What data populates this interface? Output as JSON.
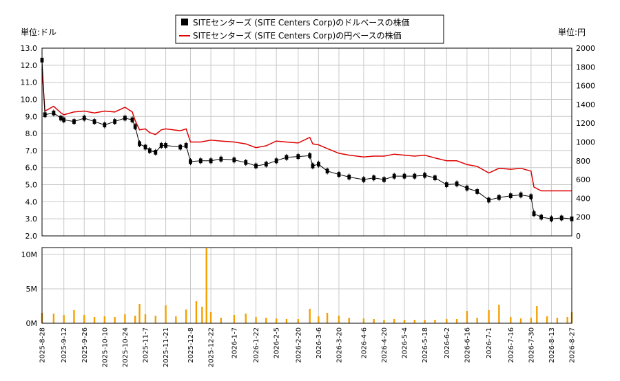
{
  "legend": {
    "usd_label": "SITEセンターズ (SITE Centers Corp)のドルベースの株価",
    "jpy_label": "SITEセンターズ (SITE Centers Corp)の円ベースの株価"
  },
  "axes": {
    "left_unit": "単位:ドル",
    "right_unit": "単位:円"
  },
  "chart_data": [
    {
      "type": "line",
      "title": "",
      "legend_position": "top-center",
      "grid": true,
      "x_dates": [
        "2025-8-28",
        "2025-9-12",
        "2025-9-26",
        "2025-10-10",
        "2025-10-24",
        "2025-11-7",
        "2025-11-21",
        "2025-12-8",
        "2025-12-22",
        "2026-1-7",
        "2026-1-22",
        "2026-2-5",
        "2026-2-20",
        "2026-3-6",
        "2026-3-20",
        "2026-4-6",
        "2026-4-20",
        "2026-5-4",
        "2026-5-18",
        "2026-6-2",
        "2026-6-16",
        "2026-7-1",
        "2026-7-16",
        "2026-7-30",
        "2026-8-13",
        "2026-8-27"
      ],
      "y_left": {
        "label": "単位:ドル",
        "ylim": [
          2.0,
          13.0
        ],
        "ticks": [
          "2.0",
          "3.0",
          "4.0",
          "5.0",
          "6.0",
          "7.0",
          "8.0",
          "9.0",
          "10.0",
          "11.0",
          "12.0",
          "13.0"
        ]
      },
      "y_right": {
        "label": "単位:円",
        "ylim": [
          0,
          2000
        ],
        "ticks": [
          "0",
          "200",
          "400",
          "600",
          "800",
          "1000",
          "1200",
          "1400",
          "1600",
          "1800",
          "2000"
        ]
      },
      "series": [
        {
          "name": "SITEセンターズ (SITE Centers Corp)のドルベースの株価",
          "axis": "left",
          "color": "#000000",
          "style": "candlestick",
          "points": [
            [
              "2025-8-28",
              12.3
            ],
            [
              "2025-8-30",
              9.1
            ],
            [
              "2025-9-5",
              9.2
            ],
            [
              "2025-9-10",
              8.9
            ],
            [
              "2025-9-12",
              8.8
            ],
            [
              "2025-9-19",
              8.7
            ],
            [
              "2025-9-26",
              8.9
            ],
            [
              "2025-10-3",
              8.7
            ],
            [
              "2025-10-10",
              8.5
            ],
            [
              "2025-10-17",
              8.7
            ],
            [
              "2025-10-24",
              8.9
            ],
            [
              "2025-10-29",
              8.8
            ],
            [
              "2025-10-31",
              8.4
            ],
            [
              "2025-11-3",
              7.4
            ],
            [
              "2025-11-7",
              7.2
            ],
            [
              "2025-11-10",
              7.0
            ],
            [
              "2025-11-14",
              6.9
            ],
            [
              "2025-11-18",
              7.3
            ],
            [
              "2025-11-21",
              7.3
            ],
            [
              "2025-12-1",
              7.2
            ],
            [
              "2025-12-5",
              7.3
            ],
            [
              "2025-12-8",
              6.35
            ],
            [
              "2025-12-15",
              6.4
            ],
            [
              "2025-12-22",
              6.4
            ],
            [
              "2025-12-29",
              6.5
            ],
            [
              "2026-1-7",
              6.45
            ],
            [
              "2026-1-15",
              6.3
            ],
            [
              "2026-1-22",
              6.1
            ],
            [
              "2026-1-29",
              6.2
            ],
            [
              "2026-2-5",
              6.4
            ],
            [
              "2026-2-12",
              6.6
            ],
            [
              "2026-2-20",
              6.65
            ],
            [
              "2026-2-28",
              6.7
            ],
            [
              "2026-3-2",
              6.1
            ],
            [
              "2026-3-6",
              6.2
            ],
            [
              "2026-3-12",
              5.8
            ],
            [
              "2026-3-20",
              5.6
            ],
            [
              "2026-3-27",
              5.45
            ],
            [
              "2026-4-6",
              5.3
            ],
            [
              "2026-4-13",
              5.4
            ],
            [
              "2026-4-20",
              5.3
            ],
            [
              "2026-4-27",
              5.5
            ],
            [
              "2026-5-4",
              5.5
            ],
            [
              "2026-5-11",
              5.5
            ],
            [
              "2026-5-18",
              5.55
            ],
            [
              "2026-5-25",
              5.4
            ],
            [
              "2026-6-2",
              5.0
            ],
            [
              "2026-6-9",
              5.05
            ],
            [
              "2026-6-16",
              4.8
            ],
            [
              "2026-6-23",
              4.6
            ],
            [
              "2026-7-1",
              4.1
            ],
            [
              "2026-7-8",
              4.25
            ],
            [
              "2026-7-16",
              4.35
            ],
            [
              "2026-7-23",
              4.4
            ],
            [
              "2026-7-30",
              4.3
            ],
            [
              "2026-8-1",
              3.3
            ],
            [
              "2026-8-6",
              3.1
            ],
            [
              "2026-8-13",
              3.0
            ],
            [
              "2026-8-20",
              3.05
            ],
            [
              "2026-8-27",
              3.0
            ]
          ]
        },
        {
          "name": "SITEセンターズ (SITE Centers Corp)の円ベースの株価",
          "axis": "right",
          "color": "#dd0000",
          "style": "line",
          "points": [
            [
              "2025-8-28",
              1780
            ],
            [
              "2025-8-30",
              1330
            ],
            [
              "2025-9-5",
              1380
            ],
            [
              "2025-9-10",
              1310
            ],
            [
              "2025-9-12",
              1290
            ],
            [
              "2025-9-19",
              1320
            ],
            [
              "2025-9-26",
              1330
            ],
            [
              "2025-10-3",
              1310
            ],
            [
              "2025-10-10",
              1330
            ],
            [
              "2025-10-17",
              1320
            ],
            [
              "2025-10-24",
              1370
            ],
            [
              "2025-10-29",
              1320
            ],
            [
              "2025-10-31",
              1230
            ],
            [
              "2025-11-3",
              1130
            ],
            [
              "2025-11-7",
              1140
            ],
            [
              "2025-11-10",
              1100
            ],
            [
              "2025-11-14",
              1080
            ],
            [
              "2025-11-18",
              1130
            ],
            [
              "2025-11-21",
              1140
            ],
            [
              "2025-12-1",
              1120
            ],
            [
              "2025-12-5",
              1140
            ],
            [
              "2025-12-8",
              1000
            ],
            [
              "2025-12-15",
              1000
            ],
            [
              "2025-12-22",
              1020
            ],
            [
              "2025-12-29",
              1010
            ],
            [
              "2026-1-7",
              1000
            ],
            [
              "2026-1-15",
              980
            ],
            [
              "2026-1-22",
              940
            ],
            [
              "2026-1-29",
              960
            ],
            [
              "2026-2-5",
              1010
            ],
            [
              "2026-2-12",
              1000
            ],
            [
              "2026-2-20",
              990
            ],
            [
              "2026-2-28",
              1050
            ],
            [
              "2026-3-2",
              980
            ],
            [
              "2026-3-6",
              970
            ],
            [
              "2026-3-12",
              930
            ],
            [
              "2026-3-20",
              880
            ],
            [
              "2026-3-27",
              860
            ],
            [
              "2026-4-6",
              840
            ],
            [
              "2026-4-13",
              850
            ],
            [
              "2026-4-20",
              850
            ],
            [
              "2026-4-27",
              870
            ],
            [
              "2026-5-4",
              860
            ],
            [
              "2026-5-11",
              850
            ],
            [
              "2026-5-18",
              860
            ],
            [
              "2026-5-25",
              830
            ],
            [
              "2026-6-2",
              800
            ],
            [
              "2026-6-9",
              800
            ],
            [
              "2026-6-16",
              760
            ],
            [
              "2026-6-23",
              740
            ],
            [
              "2026-7-1",
              670
            ],
            [
              "2026-7-8",
              720
            ],
            [
              "2026-7-16",
              710
            ],
            [
              "2026-7-23",
              720
            ],
            [
              "2026-7-30",
              690
            ],
            [
              "2026-8-1",
              520
            ],
            [
              "2026-8-6",
              480
            ],
            [
              "2026-8-13",
              480
            ],
            [
              "2026-8-20",
              480
            ],
            [
              "2026-8-27",
              480
            ]
          ]
        }
      ]
    },
    {
      "type": "bar",
      "title": "",
      "grid": true,
      "y": {
        "ylim": [
          0,
          11
        ],
        "unit": "M",
        "ticks": [
          "0M",
          "5M",
          "10M"
        ]
      },
      "series": [
        {
          "name": "",
          "color": "#f5a000",
          "values_by_date": [
            [
              "2025-8-28",
              1.5
            ],
            [
              "2025-9-5",
              1.4
            ],
            [
              "2025-9-12",
              1.2
            ],
            [
              "2025-9-19",
              1.9
            ],
            [
              "2025-9-26",
              1.2
            ],
            [
              "2025-10-3",
              0.9
            ],
            [
              "2025-10-10",
              1.0
            ],
            [
              "2025-10-17",
              0.9
            ],
            [
              "2025-10-24",
              1.3
            ],
            [
              "2025-10-31",
              1.1
            ],
            [
              "2025-11-3",
              2.8
            ],
            [
              "2025-11-7",
              1.3
            ],
            [
              "2025-11-14",
              1.1
            ],
            [
              "2025-11-21",
              2.6
            ],
            [
              "2025-11-28",
              1.0
            ],
            [
              "2025-12-5",
              2.0
            ],
            [
              "2025-12-12",
              3.2
            ],
            [
              "2025-12-16",
              2.4
            ],
            [
              "2025-12-19",
              10.9
            ],
            [
              "2025-12-22",
              1.6
            ],
            [
              "2025-12-29",
              0.8
            ],
            [
              "2026-1-7",
              1.2
            ],
            [
              "2026-1-15",
              1.4
            ],
            [
              "2026-1-22",
              0.9
            ],
            [
              "2026-1-29",
              0.8
            ],
            [
              "2026-2-5",
              0.7
            ],
            [
              "2026-2-12",
              0.6
            ],
            [
              "2026-2-20",
              0.6
            ],
            [
              "2026-2-28",
              2.1
            ],
            [
              "2026-3-6",
              1.0
            ],
            [
              "2026-3-12",
              1.5
            ],
            [
              "2026-3-20",
              1.1
            ],
            [
              "2026-3-27",
              0.8
            ],
            [
              "2026-4-6",
              0.7
            ],
            [
              "2026-4-13",
              0.6
            ],
            [
              "2026-4-20",
              0.5
            ],
            [
              "2026-4-27",
              0.6
            ],
            [
              "2026-5-4",
              0.5
            ],
            [
              "2026-5-11",
              0.5
            ],
            [
              "2026-5-18",
              0.5
            ],
            [
              "2026-5-25",
              0.5
            ],
            [
              "2026-6-2",
              0.6
            ],
            [
              "2026-6-9",
              0.6
            ],
            [
              "2026-6-16",
              1.8
            ],
            [
              "2026-6-23",
              0.8
            ],
            [
              "2026-7-1",
              1.9
            ],
            [
              "2026-7-8",
              2.7
            ],
            [
              "2026-7-16",
              0.9
            ],
            [
              "2026-7-23",
              0.7
            ],
            [
              "2026-7-30",
              0.8
            ],
            [
              "2026-8-3",
              2.5
            ],
            [
              "2026-8-10",
              1.0
            ],
            [
              "2026-8-17",
              0.8
            ],
            [
              "2026-8-24",
              0.9
            ],
            [
              "2026-8-27",
              1.6
            ]
          ]
        }
      ]
    }
  ]
}
